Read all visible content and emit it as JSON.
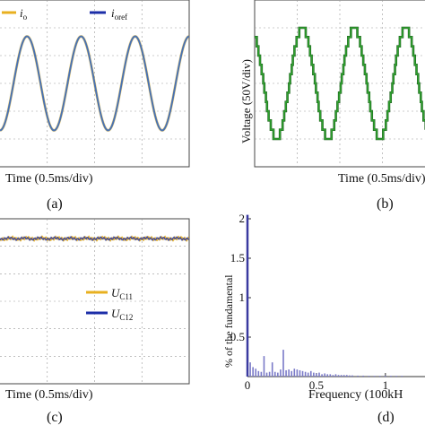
{
  "chart_data": [
    {
      "panel": "a",
      "type": "line",
      "caption": "(a)",
      "xlabel": "Time (0.5ms/div)",
      "ylabel": "",
      "grid": true,
      "legend": {
        "position": "top",
        "entries": [
          {
            "main": "i",
            "sub": "o",
            "color": "#e8b020"
          },
          {
            "main": "i",
            "sub": "oref",
            "color": "#1c2ea8"
          }
        ]
      },
      "series": [
        {
          "name": "io",
          "color": "#e8b020",
          "waveform": "sine",
          "cycles_visible": 3.5,
          "amplitude_fraction": 0.47
        },
        {
          "name": "ioref",
          "color": "#4a72b0",
          "waveform": "sine",
          "cycles_visible": 3.5,
          "amplitude_fraction": 0.47
        }
      ]
    },
    {
      "panel": "b",
      "type": "line",
      "caption": "(b)",
      "xlabel": "Time (0.5ms/div)",
      "ylabel": "Voltage (50V/div)",
      "grid": true,
      "series": [
        {
          "name": "voltage",
          "color": "#2fa02f",
          "waveform": "multilevel-staircase",
          "levels": 13,
          "cycles_visible": 3.3
        }
      ]
    },
    {
      "panel": "c",
      "type": "line",
      "caption": "(c)",
      "xlabel": "Time (0.5ms/div)",
      "ylabel": "",
      "grid": true,
      "legend": {
        "position": "right",
        "entries": [
          {
            "main": "U",
            "sub": "C11",
            "color": "#e8b020"
          },
          {
            "main": "U",
            "sub": "C12",
            "color": "#1c2ea8"
          }
        ]
      },
      "series": [
        {
          "name": "UC11",
          "color": "#e8b020",
          "waveform": "flat-ripple",
          "level_fraction": 0.88
        },
        {
          "name": "UC12",
          "color": "#1c2ea8",
          "waveform": "flat-ripple",
          "level_fraction": 0.88
        }
      ]
    },
    {
      "panel": "d",
      "type": "bar",
      "caption": "(d)",
      "xlabel": "Frequency (100kH",
      "ylabel": "% of the fundamental",
      "xlim": [
        0,
        1.3
      ],
      "ylim": [
        0,
        2
      ],
      "xticks": [
        0,
        0.5,
        1
      ],
      "yticks": [
        0,
        0.5,
        1,
        1.5,
        2
      ],
      "xtick_labels": [
        "0",
        "0.5",
        "1"
      ],
      "ytick_labels": [
        "0",
        "0.5",
        "1",
        "1.5",
        "2"
      ],
      "x": [
        0.0,
        0.02,
        0.04,
        0.06,
        0.08,
        0.1,
        0.12,
        0.14,
        0.16,
        0.18,
        0.2,
        0.22,
        0.24,
        0.26,
        0.28,
        0.3,
        0.32,
        0.34,
        0.36,
        0.38,
        0.4,
        0.42,
        0.44,
        0.46,
        0.48,
        0.5,
        0.52,
        0.54,
        0.56,
        0.58,
        0.6,
        0.62,
        0.64,
        0.66,
        0.68,
        0.7,
        0.72,
        0.74,
        0.76,
        0.8,
        0.84,
        0.88,
        0.92,
        0.96,
        1.0,
        1.04,
        1.08,
        1.12
      ],
      "values": [
        2.2,
        0.18,
        0.12,
        0.1,
        0.07,
        0.06,
        0.26,
        0.05,
        0.06,
        0.18,
        0.06,
        0.05,
        0.09,
        0.34,
        0.08,
        0.09,
        0.07,
        0.1,
        0.09,
        0.08,
        0.07,
        0.06,
        0.05,
        0.07,
        0.05,
        0.04,
        0.05,
        0.03,
        0.04,
        0.03,
        0.03,
        0.02,
        0.03,
        0.02,
        0.02,
        0.02,
        0.02,
        0.015,
        0.015,
        0.012,
        0.012,
        0.01,
        0.01,
        0.01,
        0.01,
        0.01,
        0.01,
        0.01
      ]
    }
  ]
}
